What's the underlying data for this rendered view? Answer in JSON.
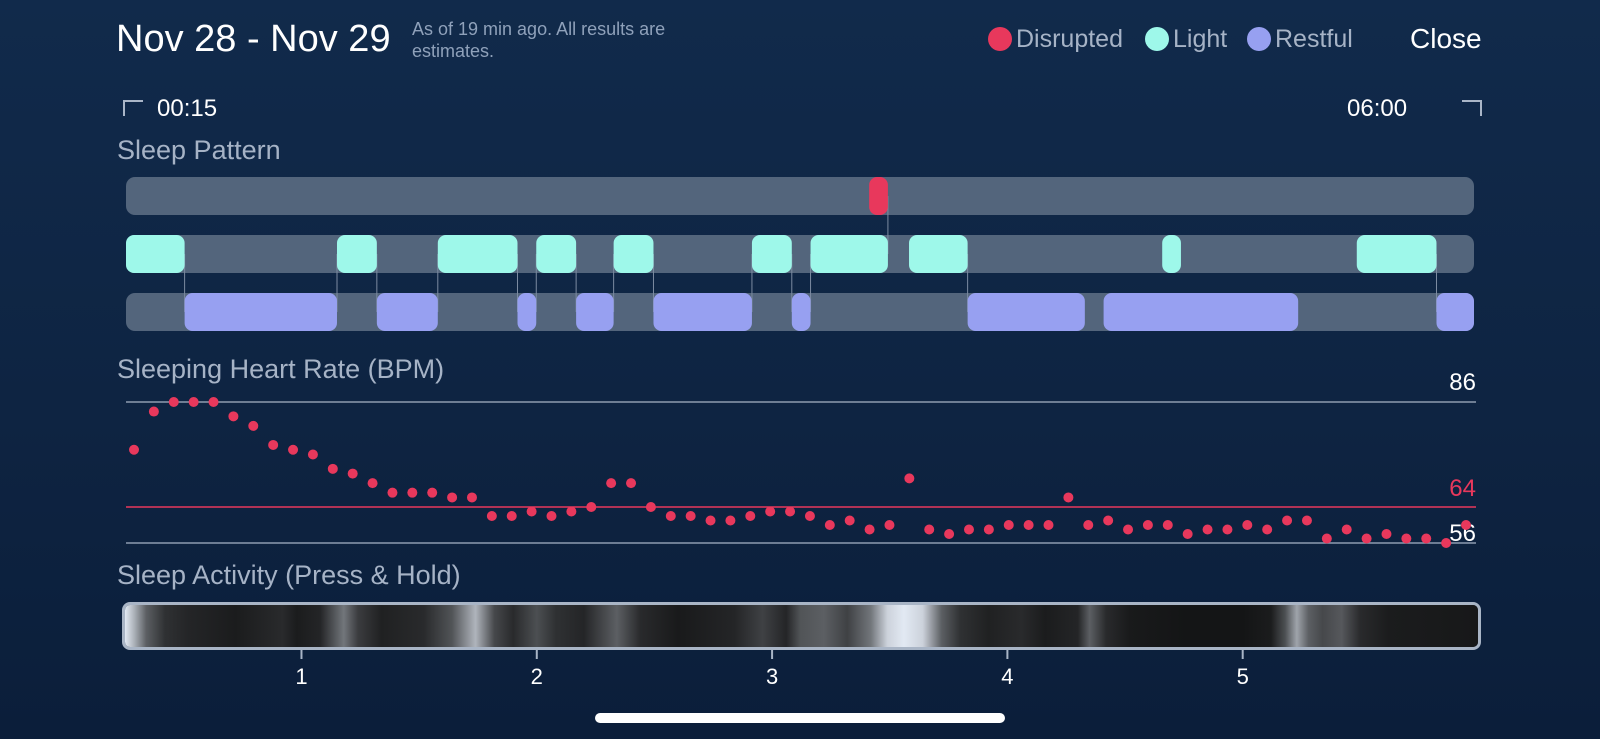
{
  "header": {
    "title": "Nov 28 - Nov 29",
    "subtitle": "As of 19 min ago. All results are estimates.",
    "close_label": "Close"
  },
  "legend": [
    {
      "label": "Disrupted",
      "color": "#e8385c"
    },
    {
      "label": "Light",
      "color": "#9ef8ea"
    },
    {
      "label": "Restful",
      "color": "#97a0f1"
    }
  ],
  "time_range": {
    "start": "00:15",
    "end": "06:00"
  },
  "sections": {
    "sleep_pattern": "Sleep Pattern",
    "heart_rate": "Sleeping Heart Rate (BPM)",
    "activity": "Sleep Activity (Press & Hold)"
  },
  "colors": {
    "track": "#53657c",
    "disrupted": "#e8385c",
    "light": "#9ef8ea",
    "restful": "#97a0f1",
    "grid": "#8d9bb0",
    "avg_line": "#e8385c"
  },
  "sleep_pattern": {
    "time_range_hours": [
      0.25,
      6.0
    ],
    "disrupted": [
      [
        3.42,
        3.5
      ]
    ],
    "light": [
      [
        0.25,
        0.5
      ],
      [
        1.15,
        1.32
      ],
      [
        1.58,
        1.92
      ],
      [
        2.0,
        2.17
      ],
      [
        2.33,
        2.5
      ],
      [
        2.92,
        3.09
      ],
      [
        3.17,
        3.5
      ],
      [
        3.59,
        3.84
      ],
      [
        4.67,
        4.75
      ],
      [
        5.5,
        5.84
      ]
    ],
    "restful": [
      [
        0.5,
        1.15
      ],
      [
        1.32,
        1.58
      ],
      [
        1.92,
        2.0
      ],
      [
        2.17,
        2.33
      ],
      [
        2.5,
        2.92
      ],
      [
        3.09,
        3.17
      ],
      [
        3.84,
        4.34
      ],
      [
        4.42,
        5.25
      ],
      [
        5.84,
        6.0
      ]
    ]
  },
  "heart_rate": {
    "max": 86,
    "avg": 64,
    "min": 56,
    "max_label": "86",
    "avg_label": "64",
    "min_label": "56",
    "time_range_hours": [
      0.25,
      6.0
    ],
    "samples": [
      76,
      84,
      86,
      86,
      86,
      83,
      81,
      77,
      76,
      75,
      72,
      71,
      69,
      67,
      67,
      67,
      66,
      66,
      62,
      62,
      63,
      62,
      63,
      64,
      69,
      69,
      64,
      62,
      62,
      61,
      61,
      62,
      63,
      63,
      62,
      60,
      61,
      59,
      60,
      70,
      59,
      58,
      59,
      59,
      60,
      60,
      60,
      66,
      60,
      61,
      59,
      60,
      60,
      58,
      59,
      59,
      60,
      59,
      61,
      61,
      57,
      59,
      57,
      58,
      57,
      57,
      56,
      60
    ]
  },
  "activity": {
    "ticks": [
      "1",
      "2",
      "3",
      "4",
      "5"
    ],
    "tick_hours": [
      1,
      2,
      3,
      4,
      5
    ],
    "time_range_hours": [
      0.25,
      6.0
    ],
    "intensity_profile": [
      [
        0.25,
        0.95
      ],
      [
        0.29,
        0.7
      ],
      [
        0.34,
        0.35
      ],
      [
        0.42,
        0.15
      ],
      [
        0.52,
        0.1
      ],
      [
        0.72,
        0.06
      ],
      [
        0.92,
        0.12
      ],
      [
        0.98,
        0.06
      ],
      [
        1.08,
        0.1
      ],
      [
        1.18,
        0.45
      ],
      [
        1.24,
        0.2
      ],
      [
        1.34,
        0.08
      ],
      [
        1.52,
        0.12
      ],
      [
        1.64,
        0.3
      ],
      [
        1.74,
        0.72
      ],
      [
        1.82,
        0.25
      ],
      [
        1.9,
        0.12
      ],
      [
        2.0,
        0.28
      ],
      [
        2.08,
        0.15
      ],
      [
        2.2,
        0.1
      ],
      [
        2.34,
        0.35
      ],
      [
        2.44,
        0.12
      ],
      [
        2.6,
        0.05
      ],
      [
        2.84,
        0.1
      ],
      [
        2.96,
        0.22
      ],
      [
        3.06,
        0.1
      ],
      [
        3.12,
        0.3
      ],
      [
        3.22,
        0.35
      ],
      [
        3.32,
        0.22
      ],
      [
        3.42,
        0.45
      ],
      [
        3.49,
        0.85
      ],
      [
        3.56,
        0.95
      ],
      [
        3.64,
        0.85
      ],
      [
        3.72,
        0.35
      ],
      [
        3.8,
        0.15
      ],
      [
        3.92,
        0.08
      ],
      [
        4.06,
        0.12
      ],
      [
        4.16,
        0.06
      ],
      [
        4.3,
        0.1
      ],
      [
        4.35,
        0.35
      ],
      [
        4.42,
        0.12
      ],
      [
        4.52,
        0.05
      ],
      [
        4.76,
        0.03
      ],
      [
        5.0,
        0.03
      ],
      [
        5.12,
        0.06
      ],
      [
        5.18,
        0.28
      ],
      [
        5.23,
        0.65
      ],
      [
        5.28,
        0.35
      ],
      [
        5.34,
        0.25
      ],
      [
        5.42,
        0.32
      ],
      [
        5.5,
        0.12
      ],
      [
        5.62,
        0.06
      ],
      [
        6.0,
        0.04
      ]
    ]
  }
}
